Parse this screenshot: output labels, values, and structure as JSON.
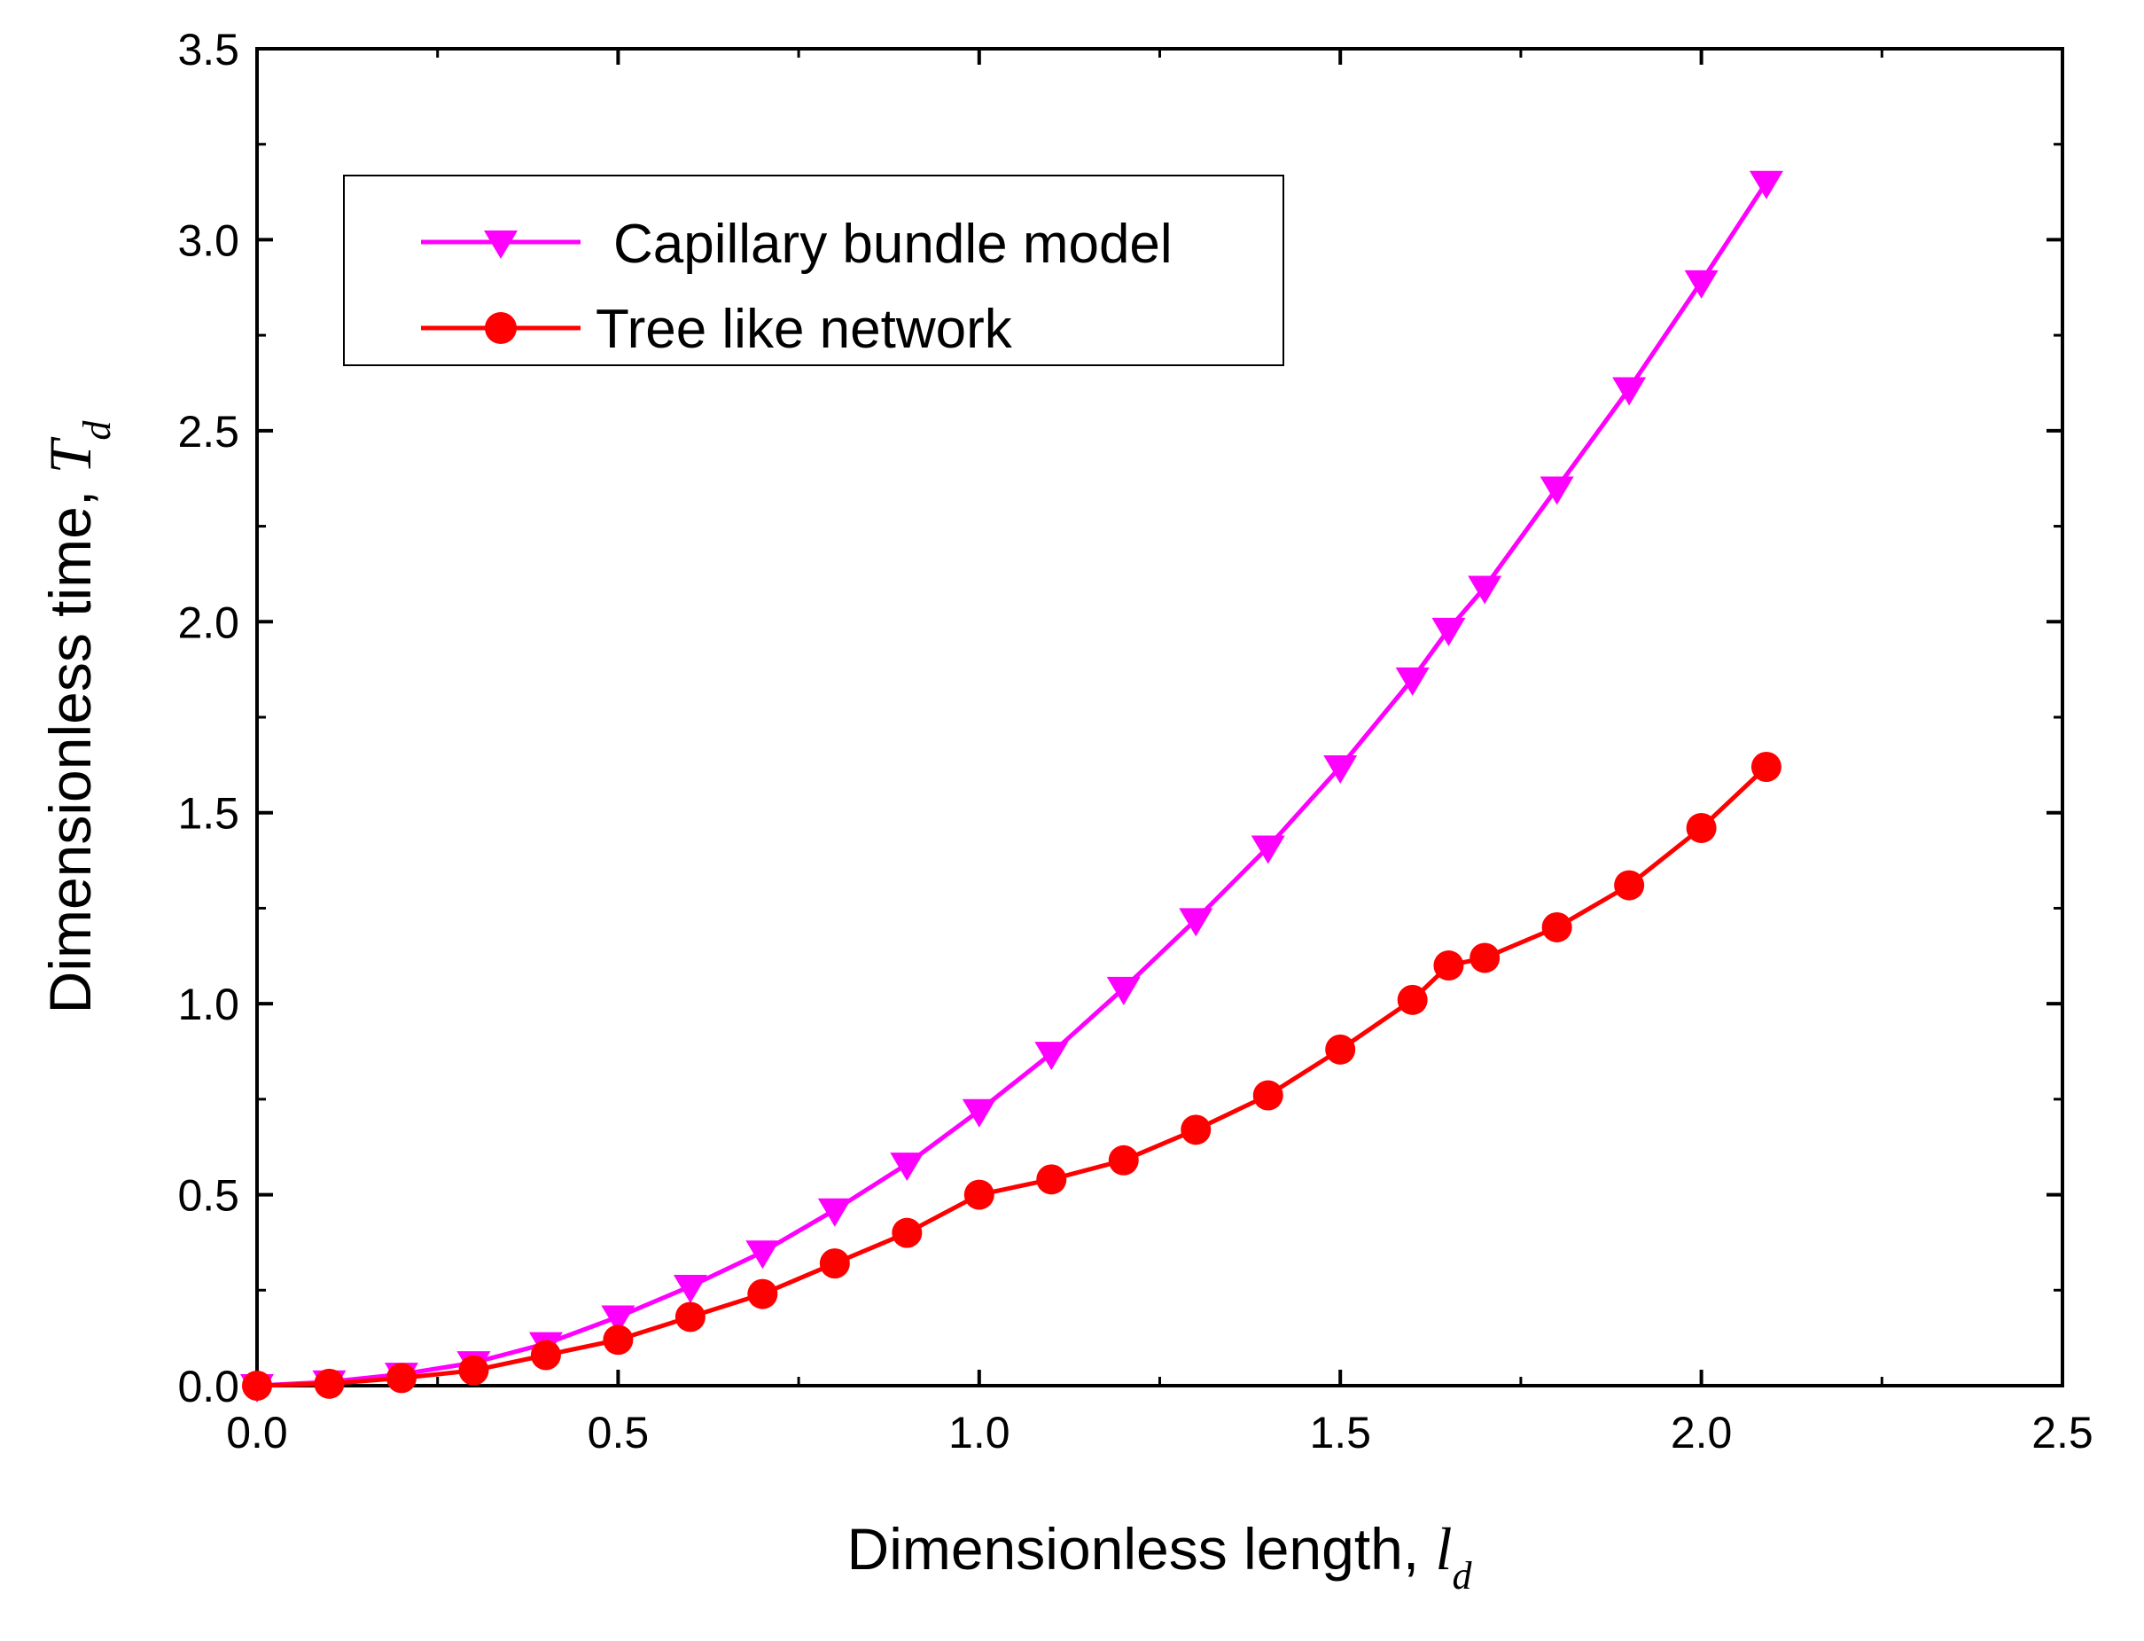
{
  "chart_data": {
    "type": "line",
    "title": "",
    "xlabel": "Dimensionless length, ",
    "xlabel_var": "l",
    "xlabel_sub": "d",
    "ylabel": "Dimensionless time, ",
    "ylabel_var": "T",
    "ylabel_sub": "d",
    "xlim": [
      0,
      2.5
    ],
    "ylim": [
      0,
      3.5
    ],
    "xticks": [
      "0.0",
      "0.5",
      "1.0",
      "1.5",
      "2.0",
      "2.5"
    ],
    "yticks": [
      "0.0",
      "0.5",
      "1.0",
      "1.5",
      "2.0",
      "2.5",
      "3.0",
      "3.5"
    ],
    "grid": false,
    "legend_position": "top-left",
    "series": [
      {
        "name": "Capillary bundle model",
        "color": "#ff00ff",
        "marker": "triangle-down",
        "x": [
          0.0,
          0.1,
          0.2,
          0.3,
          0.4,
          0.5,
          0.6,
          0.7,
          0.8,
          0.9,
          1.0,
          1.1,
          1.2,
          1.3,
          1.4,
          1.5,
          1.6,
          1.65,
          1.7,
          1.8,
          1.9,
          2.0,
          2.09
        ],
        "y": [
          0.0,
          0.01,
          0.03,
          0.06,
          0.11,
          0.18,
          0.26,
          0.35,
          0.46,
          0.58,
          0.72,
          0.87,
          1.04,
          1.22,
          1.41,
          1.62,
          1.85,
          1.98,
          2.09,
          2.35,
          2.61,
          2.89,
          3.15
        ]
      },
      {
        "name": "Tree like network",
        "color": "#ff0000",
        "marker": "circle",
        "x": [
          0.0,
          0.1,
          0.2,
          0.3,
          0.4,
          0.5,
          0.6,
          0.7,
          0.8,
          0.9,
          1.0,
          1.1,
          1.2,
          1.3,
          1.4,
          1.5,
          1.6,
          1.65,
          1.7,
          1.8,
          1.9,
          2.0,
          2.09
        ],
        "y": [
          0.0,
          0.005,
          0.02,
          0.04,
          0.08,
          0.12,
          0.18,
          0.24,
          0.32,
          0.4,
          0.5,
          0.54,
          0.59,
          0.67,
          0.76,
          0.88,
          1.01,
          1.1,
          1.12,
          1.2,
          1.31,
          1.46,
          1.62
        ]
      }
    ]
  }
}
